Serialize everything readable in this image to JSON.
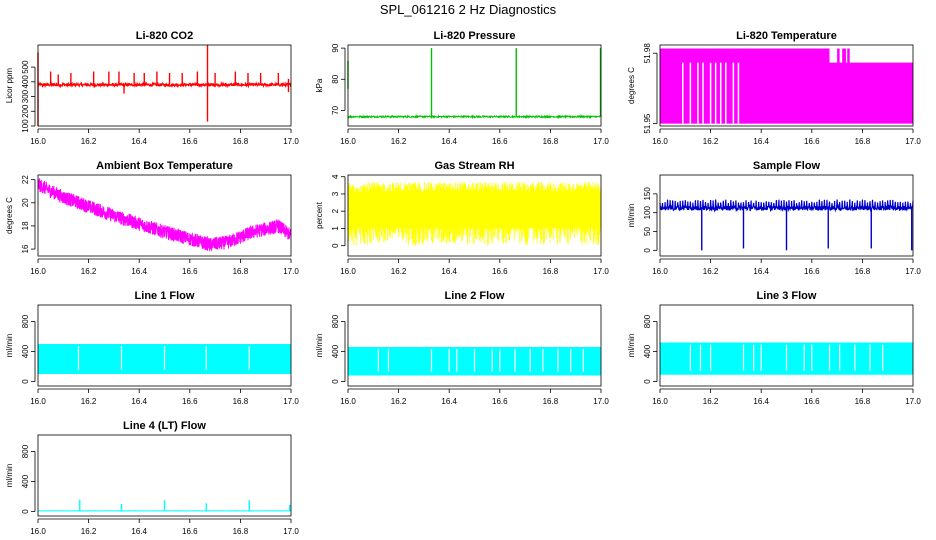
{
  "title": "SPL_061216  2 Hz Diagnostics",
  "chart_data": [
    {
      "type": "line",
      "title": "Li-820 CO2",
      "xlabel": "",
      "ylabel": "Licor ppm",
      "xlim": [
        16.0,
        17.0
      ],
      "ylim": [
        100,
        650
      ],
      "xticks": [
        16.0,
        16.2,
        16.4,
        16.6,
        16.8,
        17.0
      ],
      "xticklabels": [
        "16.0",
        "16.2",
        "16.4",
        "16.6",
        "16.8",
        "17.0"
      ],
      "yticks": [
        100,
        200,
        300,
        400,
        500
      ],
      "yticklabels": [
        "100",
        "200",
        "300",
        "400",
        "500"
      ],
      "color": "#ff0000",
      "style": "noisy",
      "base": 380,
      "noise": 10,
      "spikes": [
        [
          16.0,
          600,
          100
        ],
        [
          16.05,
          470
        ],
        [
          16.08,
          450
        ],
        [
          16.13,
          460
        ],
        [
          16.22,
          470
        ],
        [
          16.28,
          470
        ],
        [
          16.32,
          470
        ],
        [
          16.34,
          320
        ],
        [
          16.38,
          460
        ],
        [
          16.42,
          460
        ],
        [
          16.47,
          470
        ],
        [
          16.52,
          460
        ],
        [
          16.57,
          460
        ],
        [
          16.63,
          470
        ],
        [
          16.67,
          650,
          130
        ],
        [
          16.7,
          460
        ],
        [
          16.78,
          470
        ],
        [
          16.83,
          460
        ],
        [
          16.88,
          460
        ],
        [
          16.95,
          460
        ],
        [
          16.99,
          420,
          330
        ]
      ]
    },
    {
      "type": "line",
      "title": "Li-820 Pressure",
      "xlabel": "",
      "ylabel": "kPa",
      "xlim": [
        16.0,
        17.0
      ],
      "ylim": [
        65,
        91
      ],
      "xticks": [
        16.0,
        16.2,
        16.4,
        16.6,
        16.8,
        17.0
      ],
      "xticklabels": [
        "16.0",
        "16.2",
        "16.4",
        "16.6",
        "16.8",
        "17.0"
      ],
      "yticks": [
        70,
        80,
        90
      ],
      "yticklabels": [
        "70",
        "80",
        "90"
      ],
      "color": "#00c000",
      "style": "line",
      "base": 68,
      "noise": 0.25,
      "spikes": [
        [
          16.0,
          86,
          77
        ],
        [
          16.33,
          90
        ],
        [
          16.665,
          90
        ],
        [
          16.998,
          90
        ]
      ]
    },
    {
      "type": "line",
      "title": "Li-820 Temperature",
      "xlabel": "",
      "ylabel": "degrees C",
      "xlim": [
        16.0,
        17.0
      ],
      "ylim": [
        51.949,
        51.9835
      ],
      "xticks": [
        16.0,
        16.2,
        16.4,
        16.6,
        16.8,
        17.0
      ],
      "xticklabels": [
        "16.0",
        "16.2",
        "16.4",
        "16.6",
        "16.8",
        "17.0"
      ],
      "yticks": [
        51.95,
        51.98
      ],
      "yticklabels": [
        "51.95",
        "51.98"
      ],
      "color": "#ff00ff",
      "style": "fillband",
      "band": [
        51.95,
        51.982
      ],
      "gaps": [
        [
          16.67,
          16.7,
          51.976
        ],
        [
          16.71,
          16.72,
          51.976
        ],
        [
          16.735,
          16.74,
          51.976
        ],
        [
          16.75,
          17.0,
          51.976
        ]
      ],
      "dropouts": [
        16.09,
        16.12,
        16.15,
        16.17,
        16.2,
        16.22,
        16.24,
        16.26,
        16.29,
        16.31
      ]
    },
    {
      "type": "line",
      "title": "Ambient Box Temperature",
      "xlabel": "",
      "ylabel": "degrees C",
      "xlim": [
        16.0,
        17.0
      ],
      "ylim": [
        15.4,
        22.4
      ],
      "xticks": [
        16.0,
        16.2,
        16.4,
        16.6,
        16.8,
        17.0
      ],
      "xticklabels": [
        "16.0",
        "16.2",
        "16.4",
        "16.6",
        "16.8",
        "17.0"
      ],
      "yticks": [
        16,
        18,
        20,
        22
      ],
      "yticklabels": [
        "16",
        "18",
        "20",
        "22"
      ],
      "color": "#ff00ff",
      "style": "trend",
      "trend": [
        [
          16.0,
          21.7
        ],
        [
          16.1,
          20.6
        ],
        [
          16.2,
          19.8
        ],
        [
          16.3,
          19.0
        ],
        [
          16.4,
          18.3
        ],
        [
          16.5,
          17.6
        ],
        [
          16.6,
          17.0
        ],
        [
          16.68,
          16.5
        ],
        [
          16.75,
          16.7
        ],
        [
          16.85,
          17.6
        ],
        [
          16.95,
          18.1
        ],
        [
          17.0,
          17.3
        ]
      ],
      "noise": 0.6
    },
    {
      "type": "line",
      "title": "Gas Stream RH",
      "xlabel": "",
      "ylabel": "percent",
      "xlim": [
        16.0,
        17.0
      ],
      "ylim": [
        -0.6,
        4.1
      ],
      "xticks": [
        16.0,
        16.2,
        16.4,
        16.6,
        16.8,
        17.0
      ],
      "xticklabels": [
        "16.0",
        "16.2",
        "16.4",
        "16.6",
        "16.8",
        "17.0"
      ],
      "yticks": [
        0,
        1,
        2,
        3,
        4
      ],
      "yticklabels": [
        "0",
        "1",
        "2",
        "3",
        "4"
      ],
      "color": "#ffff00",
      "style": "dense",
      "band": [
        0.0,
        3.7
      ],
      "core": [
        1.0,
        3.1
      ]
    },
    {
      "type": "line",
      "title": "Sample Flow",
      "xlabel": "",
      "ylabel": "ml/min",
      "xlim": [
        16.0,
        17.0
      ],
      "ylim": [
        -15,
        200
      ],
      "xticks": [
        16.0,
        16.2,
        16.4,
        16.6,
        16.8,
        17.0
      ],
      "xticklabels": [
        "16.0",
        "16.2",
        "16.4",
        "16.6",
        "16.8",
        "17.0"
      ],
      "yticks": [
        0,
        50,
        100,
        150
      ],
      "yticklabels": [
        "0",
        "50",
        "100",
        "150"
      ],
      "color": "#0000cc",
      "style": "noisy",
      "base": 112,
      "noise": 6,
      "periodic": [
        0.01,
        135
      ],
      "spikes": [
        [
          16.165,
          112,
          0
        ],
        [
          16.33,
          112,
          5
        ],
        [
          16.5,
          112,
          0
        ],
        [
          16.665,
          112,
          5
        ],
        [
          16.835,
          112,
          5
        ],
        [
          16.995,
          112,
          0
        ]
      ]
    },
    {
      "type": "line",
      "title": "Line 1 Flow",
      "xlabel": "",
      "ylabel": "ml/min",
      "xlim": [
        16.0,
        17.0
      ],
      "ylim": [
        -60,
        1020
      ],
      "xticks": [
        16.0,
        16.2,
        16.4,
        16.6,
        16.8,
        17.0
      ],
      "xticklabels": [
        "16.0",
        "16.2",
        "16.4",
        "16.6",
        "16.8",
        "17.0"
      ],
      "yticks": [
        0,
        400,
        800
      ],
      "yticklabels": [
        "0",
        "400",
        "800"
      ],
      "color": "#00ffff",
      "style": "block",
      "band": [
        100,
        500
      ],
      "gaps": [
        16.16,
        16.33,
        16.5,
        16.665,
        16.835
      ]
    },
    {
      "type": "line",
      "title": "Line 2 Flow",
      "xlabel": "",
      "ylabel": "ml/min",
      "xlim": [
        16.0,
        17.0
      ],
      "ylim": [
        -60,
        1020
      ],
      "xticks": [
        16.0,
        16.2,
        16.4,
        16.6,
        16.8,
        17.0
      ],
      "xticklabels": [
        "16.0",
        "16.2",
        "16.4",
        "16.6",
        "16.8",
        "17.0"
      ],
      "yticks": [
        0,
        400,
        800
      ],
      "yticklabels": [
        "0",
        "400",
        "800"
      ],
      "color": "#00ffff",
      "style": "block",
      "band": [
        80,
        460
      ],
      "gaps": [
        16.12,
        16.16,
        16.33,
        16.4,
        16.43,
        16.5,
        16.57,
        16.6,
        16.66,
        16.72,
        16.77,
        16.83,
        16.88,
        16.93
      ]
    },
    {
      "type": "line",
      "title": "Line 3 Flow",
      "xlabel": "",
      "ylabel": "ml/min",
      "xlim": [
        16.0,
        17.0
      ],
      "ylim": [
        -60,
        1020
      ],
      "xticks": [
        16.0,
        16.2,
        16.4,
        16.6,
        16.8,
        17.0
      ],
      "xticklabels": [
        "16.0",
        "16.2",
        "16.4",
        "16.6",
        "16.8",
        "17.0"
      ],
      "yticks": [
        0,
        400,
        800
      ],
      "yticklabels": [
        "0",
        "400",
        "800"
      ],
      "color": "#00ffff",
      "style": "block",
      "band": [
        90,
        520
      ],
      "gaps": [
        16.12,
        16.16,
        16.2,
        16.33,
        16.37,
        16.4,
        16.5,
        16.57,
        16.6,
        16.67,
        16.71,
        16.77,
        16.83,
        16.88
      ]
    },
    {
      "type": "line",
      "title": "Line 4 (LT) Flow",
      "xlabel": "",
      "ylabel": "ml/min",
      "xlim": [
        16.0,
        17.0
      ],
      "ylim": [
        -60,
        1020
      ],
      "xticks": [
        16.0,
        16.2,
        16.4,
        16.6,
        16.8,
        17.0
      ],
      "xticklabels": [
        "16.0",
        "16.2",
        "16.4",
        "16.6",
        "16.8",
        "17.0"
      ],
      "yticks": [
        0,
        400,
        800
      ],
      "yticklabels": [
        "0",
        "400",
        "800"
      ],
      "color": "#00ffff",
      "style": "line",
      "base": 8,
      "noise": 2,
      "spikes": [
        [
          16.165,
          160
        ],
        [
          16.33,
          100
        ],
        [
          16.5,
          150
        ],
        [
          16.665,
          110
        ],
        [
          16.835,
          150
        ],
        [
          16.995,
          90
        ]
      ]
    }
  ]
}
